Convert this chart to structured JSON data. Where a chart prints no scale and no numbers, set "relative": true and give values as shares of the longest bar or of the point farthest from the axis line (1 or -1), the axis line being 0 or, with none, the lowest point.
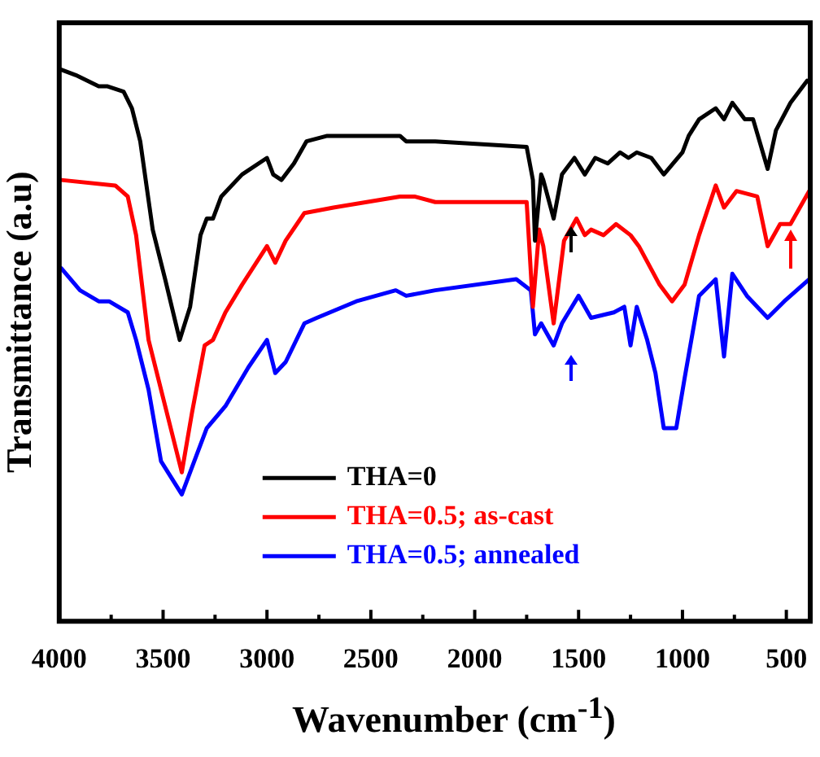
{
  "chart_data": {
    "type": "line",
    "xlabel": "Wavenumber (cm$^{-1}$)",
    "ylabel": "Transmittance (a.u)",
    "relative": true,
    "xlim": [
      4000,
      385
    ],
    "xticks": [
      4000,
      {
        "value": 3750,
        "label": null
      },
      3500,
      {
        "value": 3250,
        "label": null
      },
      3000,
      {
        "value": 2750,
        "label": null
      },
      2500,
      {
        "value": 2250,
        "label": null
      },
      2000,
      {
        "value": 1750,
        "label": null
      },
      1500,
      {
        "value": 1250,
        "label": null
      },
      1000,
      {
        "value": 750,
        "label": null
      },
      500
    ],
    "grid": false,
    "legend": "bottom right",
    "marker": "none",
    "line_style": "solid",
    "series": [
      {
        "name": "THA=0",
        "color": "#000000",
        "x": [
          3990,
          3920,
          3810,
          3770,
          3690,
          3650,
          3610,
          3550,
          3490,
          3420,
          3370,
          3320,
          3290,
          3260,
          3220,
          3120,
          3000,
          2970,
          2930,
          2870,
          2810,
          2710,
          2360,
          2330,
          2190,
          1750,
          1720,
          1710,
          1680,
          1670,
          1620,
          1580,
          1520,
          1470,
          1420,
          1360,
          1300,
          1260,
          1220,
          1150,
          1090,
          1000,
          970,
          920,
          840,
          800,
          760,
          700,
          660,
          590,
          550,
          480,
          400
        ],
        "values": [
          1.0,
          0.99,
          0.97,
          0.97,
          0.96,
          0.93,
          0.87,
          0.71,
          0.62,
          0.51,
          0.57,
          0.7,
          0.73,
          0.73,
          0.77,
          0.81,
          0.84,
          0.81,
          0.8,
          0.83,
          0.87,
          0.88,
          0.88,
          0.87,
          0.87,
          0.86,
          0.8,
          0.69,
          0.81,
          0.8,
          0.73,
          0.81,
          0.84,
          0.81,
          0.84,
          0.83,
          0.85,
          0.84,
          0.85,
          0.84,
          0.81,
          0.85,
          0.88,
          0.91,
          0.93,
          0.91,
          0.94,
          0.91,
          0.91,
          0.82,
          0.89,
          0.94,
          0.98
        ]
      },
      {
        "name": "THA=0.5; as-cast",
        "color": "#ff0000",
        "x": [
          3990,
          3730,
          3670,
          3630,
          3570,
          3490,
          3410,
          3360,
          3300,
          3260,
          3200,
          3120,
          3000,
          2960,
          2910,
          2820,
          2680,
          2360,
          2290,
          2190,
          1750,
          1720,
          1690,
          1670,
          1620,
          1570,
          1510,
          1470,
          1440,
          1380,
          1320,
          1250,
          1210,
          1110,
          1050,
          990,
          920,
          840,
          800,
          740,
          640,
          590,
          530,
          480,
          390
        ],
        "values": [
          0.8,
          0.79,
          0.77,
          0.7,
          0.51,
          0.39,
          0.27,
          0.38,
          0.5,
          0.51,
          0.56,
          0.61,
          0.68,
          0.65,
          0.69,
          0.74,
          0.75,
          0.77,
          0.77,
          0.76,
          0.76,
          0.57,
          0.71,
          0.68,
          0.54,
          0.69,
          0.73,
          0.7,
          0.71,
          0.7,
          0.72,
          0.7,
          0.68,
          0.61,
          0.58,
          0.61,
          0.7,
          0.79,
          0.75,
          0.78,
          0.77,
          0.68,
          0.72,
          0.72,
          0.78
        ]
      },
      {
        "name": "THA=0.5; annealed",
        "color": "#0000ff",
        "x": [
          3990,
          3900,
          3810,
          3760,
          3670,
          3630,
          3570,
          3510,
          3410,
          3340,
          3290,
          3200,
          3090,
          3000,
          2960,
          2910,
          2820,
          2760,
          2570,
          2380,
          2330,
          2190,
          1800,
          1730,
          1710,
          1680,
          1620,
          1580,
          1500,
          1440,
          1330,
          1280,
          1250,
          1220,
          1170,
          1130,
          1090,
          1030,
          990,
          920,
          840,
          800,
          760,
          690,
          590,
          510,
          390
        ],
        "values": [
          0.64,
          0.6,
          0.58,
          0.58,
          0.56,
          0.51,
          0.42,
          0.29,
          0.23,
          0.3,
          0.35,
          0.39,
          0.46,
          0.51,
          0.45,
          0.47,
          0.54,
          0.55,
          0.58,
          0.6,
          0.59,
          0.6,
          0.62,
          0.6,
          0.52,
          0.54,
          0.5,
          0.54,
          0.59,
          0.55,
          0.56,
          0.57,
          0.5,
          0.57,
          0.51,
          0.45,
          0.35,
          0.35,
          0.44,
          0.59,
          0.62,
          0.48,
          0.63,
          0.59,
          0.55,
          0.58,
          0.62
        ]
      }
    ]
  }
}
